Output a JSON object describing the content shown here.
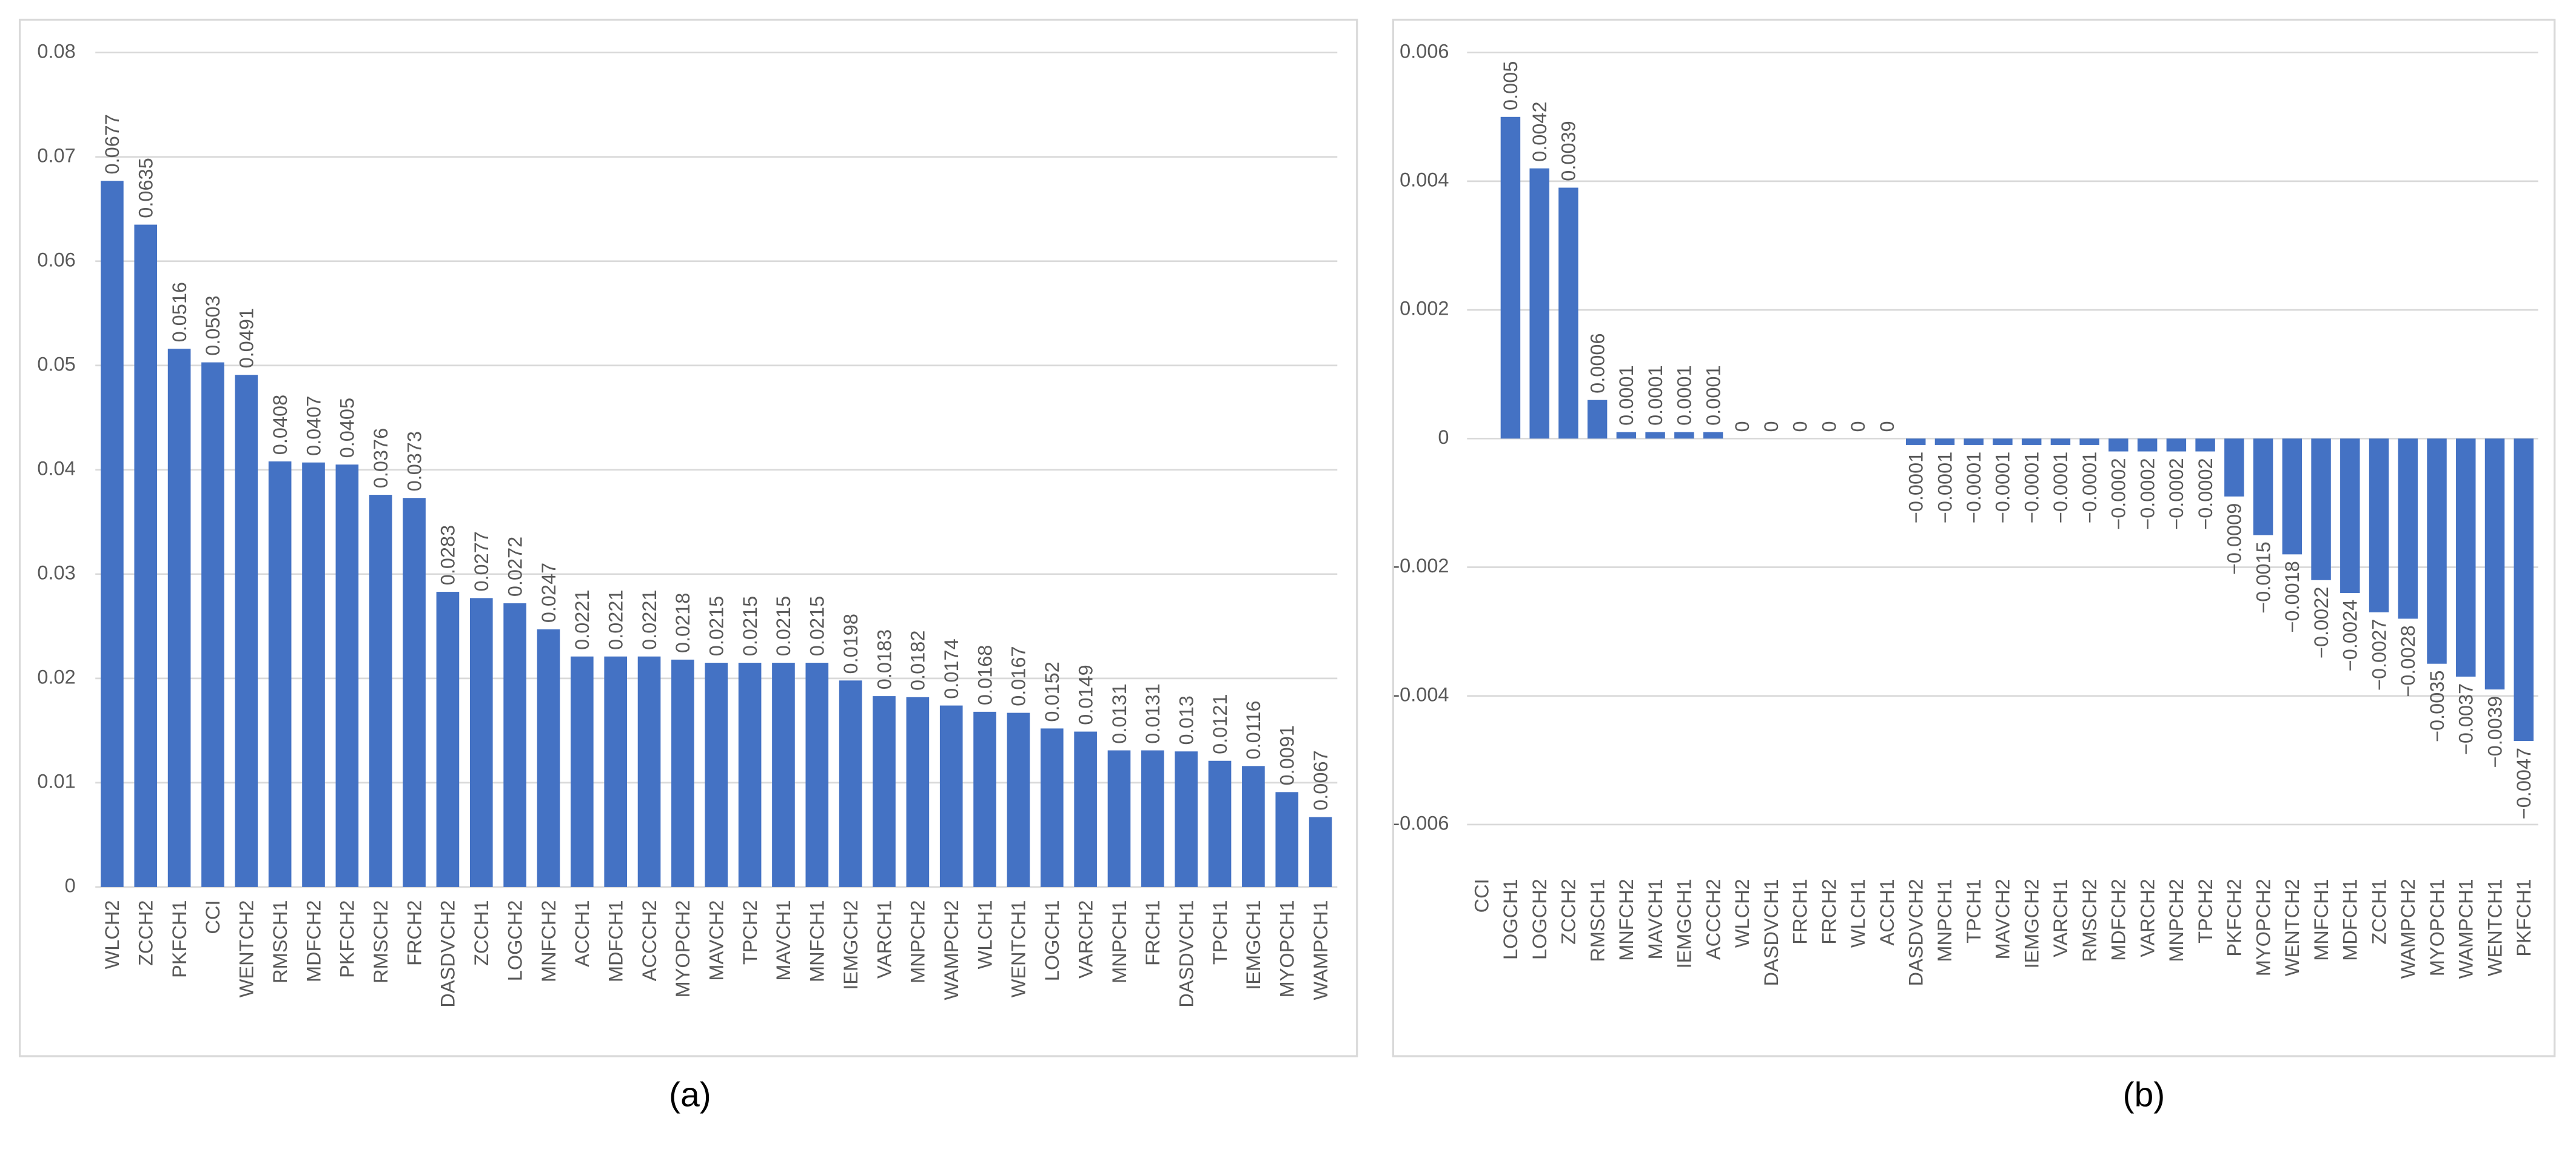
{
  "chart_data": [
    {
      "type": "bar",
      "caption": "(a)",
      "color": "#4472c4",
      "grid": true,
      "categories": [
        "WLCH2",
        "ZCCH2",
        "PKFCH1",
        "CCI",
        "WENTCH2",
        "RMSCH1",
        "MDFCH2",
        "PKFCH2",
        "RMSCH2",
        "FRCH2",
        "DASDVCH2",
        "ZCCH1",
        "LOGCH2",
        "MNFCH2",
        "ACCH1",
        "MDFCH1",
        "ACCCH2",
        "MYOPCH2",
        "MAVCH2",
        "TPCH2",
        "MAVCH1",
        "MNFCH1",
        "IEMGCH2",
        "VARCH1",
        "MNPCH2",
        "WAMPCH2",
        "WLCH1",
        "WENTCH1",
        "LOGCH1",
        "VARCH2",
        "MNPCH1",
        "FRCH1",
        "DASDVCH1",
        "TPCH1",
        "IEMGCH1",
        "MYOPCH1",
        "WAMPCH1"
      ],
      "values": [
        0.0677,
        0.0635,
        0.0516,
        0.0503,
        0.0491,
        0.0408,
        0.0407,
        0.0405,
        0.0376,
        0.0373,
        0.0283,
        0.0277,
        0.0272,
        0.0247,
        0.0221,
        0.0221,
        0.0221,
        0.0218,
        0.0215,
        0.0215,
        0.0215,
        0.0215,
        0.0198,
        0.0183,
        0.0182,
        0.0174,
        0.0168,
        0.0167,
        0.0152,
        0.0149,
        0.0131,
        0.0131,
        0.013,
        0.0121,
        0.0116,
        0.0091,
        0.0067
      ],
      "ylim": [
        0,
        0.08
      ],
      "yticks": [
        0,
        0.01,
        0.02,
        0.03,
        0.04,
        0.05,
        0.06,
        0.07,
        0.08
      ]
    },
    {
      "type": "bar",
      "caption": "(b)",
      "color": "#4472c4",
      "grid": true,
      "categories": [
        "CCI",
        "LOGCH1",
        "LOGCH2",
        "ZCCH2",
        "RMSCH1",
        "MNFCH2",
        "MAVCH1",
        "IEMGCH1",
        "ACCCH2",
        "WLCH2",
        "DASDVCH1",
        "FRCH1",
        "FRCH2",
        "WLCH1",
        "ACCH1",
        "DASDVCH2",
        "MNPCH1",
        "TPCH1",
        "MAVCH2",
        "IEMGCH2",
        "VARCH1",
        "RMSCH2",
        "MDFCH2",
        "VARCH2",
        "MNPCH2",
        "TPCH2",
        "PKFCH2",
        "MYOPCH2",
        "WENTCH2",
        "MNFCH1",
        "MDFCH1",
        "ZCCH1",
        "WAMPCH2",
        "MYOPCH1",
        "WAMPCH1",
        "WENTCH1",
        "PKFCH1"
      ],
      "values": [
        null,
        0.005,
        0.0042,
        0.0039,
        0.0006,
        0.0001,
        0.0001,
        0.0001,
        0.0001,
        0,
        0,
        0,
        0,
        0,
        0,
        -0.0001,
        -0.0001,
        -0.0001,
        -0.0001,
        -0.0001,
        -0.0001,
        -0.0001,
        -0.0002,
        -0.0002,
        -0.0002,
        -0.0002,
        -0.0009,
        -0.0015,
        -0.0018,
        -0.0022,
        -0.0024,
        -0.0027,
        -0.0028,
        -0.0035,
        -0.0037,
        -0.0039,
        -0.0047
      ],
      "value_labels": [
        null,
        "0.005",
        "0.0042",
        "0.0039",
        "0.0006",
        "0.0001",
        "0.0001",
        "0.0001",
        "0.0001",
        "0",
        "0",
        "0",
        "0",
        "0",
        "0",
        "−0.0001",
        "−0.0001",
        "−0.0001",
        "−0.0001",
        "−0.0001",
        "−0.0001",
        "−0.0001",
        "−0.0002",
        "−0.0002",
        "−0.0002",
        "−0.0002",
        "−0.0009",
        "−0.0015",
        "−0.0018",
        "−0.0022",
        "−0.0024",
        "−0.0027",
        "−0.0028",
        "−0.0035",
        "−0.0037",
        "−0.0039",
        "−0.0047"
      ],
      "ylim": [
        -0.006,
        0.006
      ],
      "yticks": [
        -0.006,
        -0.004,
        -0.002,
        0,
        0.002,
        0.004,
        0.006
      ]
    }
  ]
}
